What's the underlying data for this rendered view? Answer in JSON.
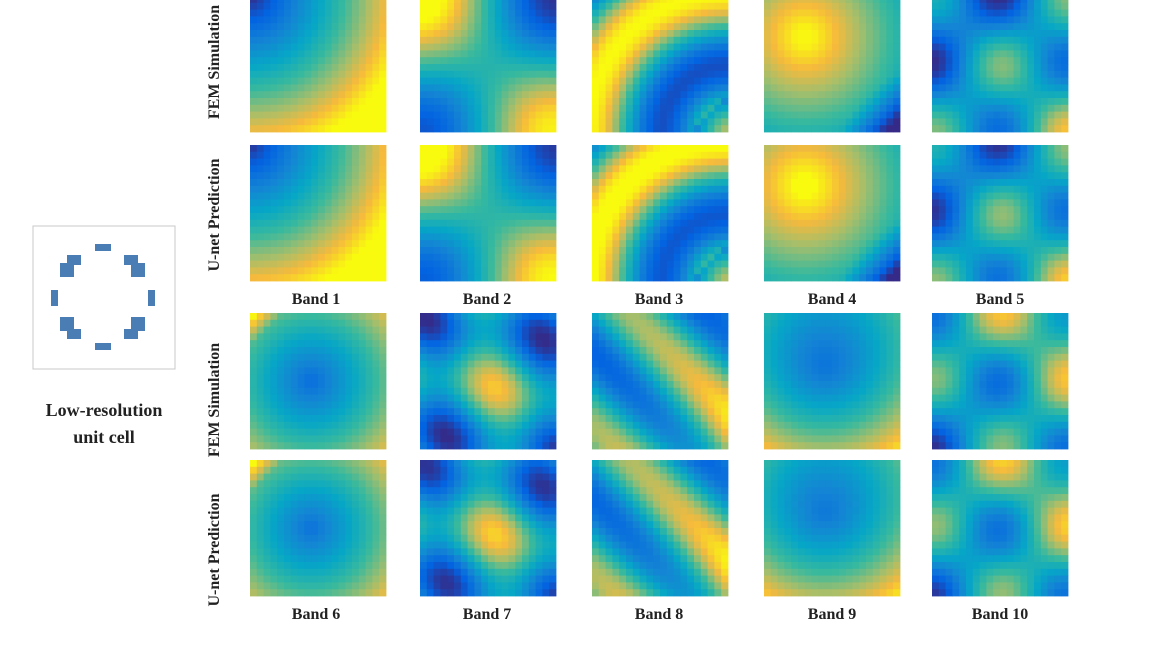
{
  "unit_cell": {
    "caption": [
      "Low-resolution",
      "unit cell"
    ]
  },
  "rows": [
    "FEM Simulation",
    "U-net Prediction",
    "FEM Simulation",
    "U-net Prediction"
  ],
  "bands": [
    "Band 1",
    "Band 2",
    "Band 3",
    "Band 4",
    "Band 5",
    "Band 6",
    "Band 7",
    "Band 8",
    "Band 9",
    "Band 10"
  ]
}
